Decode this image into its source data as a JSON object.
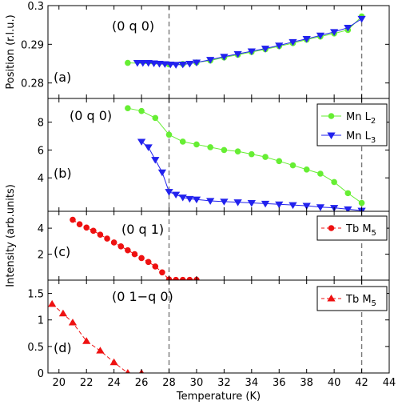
{
  "colors": {
    "green": "#66ee33",
    "blue": "#2222ee",
    "red": "#ee1111",
    "dash_line": "#777777",
    "frame": "#000000"
  },
  "chart_data": [
    {
      "id": "a",
      "type": "line",
      "panel_label": "(a)",
      "annotation": "(0 q 0)",
      "ylabel": "Position (r.l.u.)",
      "xlim": [
        19.2,
        44
      ],
      "ylim": [
        0.276,
        0.3
      ],
      "yticks": [
        0.28,
        0.29,
        0.3
      ],
      "ytick_labels": [
        "0.28",
        "0.29",
        "0.3"
      ],
      "vlines": [
        28,
        42
      ],
      "series": [
        {
          "name": "Mn L2",
          "color": "green",
          "marker": "circle",
          "line": "solid",
          "x": [
            25,
            28,
            29,
            30,
            31,
            32,
            33,
            34,
            35,
            36,
            37,
            38,
            39,
            40,
            41,
            42
          ],
          "y": [
            0.2852,
            0.2848,
            0.2849,
            0.2853,
            0.2858,
            0.2866,
            0.2873,
            0.288,
            0.2887,
            0.2895,
            0.2903,
            0.2912,
            0.292,
            0.2928,
            0.2937,
            0.2972
          ]
        },
        {
          "name": "Mn L3",
          "color": "blue",
          "marker": "triangle-down",
          "line": "solid",
          "x": [
            25.7,
            26.1,
            26.5,
            26.9,
            27.3,
            27.7,
            28.1,
            28.5,
            29,
            29.5,
            30,
            31,
            32,
            33,
            34,
            35,
            36,
            37,
            38,
            39,
            40,
            41,
            42
          ],
          "y": [
            0.2852,
            0.2852,
            0.2852,
            0.2851,
            0.285,
            0.2849,
            0.2848,
            0.2847,
            0.2848,
            0.285,
            0.2853,
            0.286,
            0.2868,
            0.2875,
            0.2882,
            0.2889,
            0.2897,
            0.2906,
            0.2914,
            0.2923,
            0.2932,
            0.2943,
            0.2966
          ]
        }
      ]
    },
    {
      "id": "b",
      "type": "line",
      "panel_label": "(b)",
      "annotation": "(0 q 0)",
      "xlim": [
        19.2,
        44
      ],
      "ylim": [
        1.6,
        9.7
      ],
      "yticks": [
        4,
        6,
        8
      ],
      "ytick_labels": [
        "4",
        "6",
        "8"
      ],
      "vlines": [
        28,
        42
      ],
      "legend": {
        "placement": "top-right",
        "entries": [
          {
            "label_main": "Mn L",
            "label_sub": "2",
            "color": "green",
            "marker": "circle",
            "line": "solid"
          },
          {
            "label_main": "Mn L",
            "label_sub": "3",
            "color": "blue",
            "marker": "triangle-down",
            "line": "solid"
          }
        ]
      },
      "series": [
        {
          "name": "Mn L2",
          "color": "green",
          "marker": "circle",
          "line": "solid",
          "x": [
            25,
            26,
            27,
            28,
            29,
            30,
            31,
            32,
            33,
            34,
            35,
            36,
            37,
            38,
            39,
            40,
            41,
            42
          ],
          "y": [
            9.0,
            8.8,
            8.3,
            7.1,
            6.6,
            6.4,
            6.2,
            6.0,
            5.9,
            5.7,
            5.5,
            5.2,
            4.9,
            4.6,
            4.3,
            3.7,
            2.9,
            2.2
          ]
        },
        {
          "name": "Mn L3",
          "color": "blue",
          "marker": "triangle-down",
          "line": "solid",
          "x": [
            26,
            26.5,
            27,
            27.5,
            28,
            28.5,
            29,
            29.5,
            30,
            31,
            32,
            33,
            34,
            35,
            36,
            37,
            38,
            39,
            40,
            41,
            42
          ],
          "y": [
            6.6,
            6.2,
            5.3,
            4.4,
            3.0,
            2.8,
            2.6,
            2.5,
            2.45,
            2.35,
            2.3,
            2.25,
            2.2,
            2.15,
            2.1,
            2.05,
            2.0,
            1.9,
            1.85,
            1.75,
            1.65
          ]
        }
      ]
    },
    {
      "id": "c",
      "type": "line",
      "panel_label": "(c)",
      "annotation": "(0 q 1)",
      "xlim": [
        19.2,
        44
      ],
      "ylim": [
        0,
        5.3
      ],
      "yticks": [
        2,
        4
      ],
      "ytick_labels": [
        "2",
        "4"
      ],
      "vlines": [
        28,
        42
      ],
      "legend": {
        "placement": "top-right",
        "entries": [
          {
            "label_main": "Tb M",
            "label_sub": "5",
            "color": "red",
            "marker": "circle",
            "line": "dashed"
          }
        ]
      },
      "series": [
        {
          "name": "Tb M5",
          "color": "red",
          "marker": "circle",
          "line": "dashed",
          "x": [
            21,
            21.5,
            22,
            22.5,
            23,
            23.5,
            24,
            24.5,
            25,
            25.5,
            26,
            26.5,
            27,
            27.5,
            28,
            28.5,
            29,
            29.5,
            30
          ],
          "y": [
            4.65,
            4.3,
            4.05,
            3.8,
            3.5,
            3.2,
            2.9,
            2.6,
            2.3,
            2.0,
            1.7,
            1.4,
            1.05,
            0.6,
            0.05,
            0.02,
            0.02,
            0.02,
            0.02
          ]
        }
      ]
    },
    {
      "id": "d",
      "type": "line",
      "panel_label": "(d)",
      "annotation": "(0 1−q 0)",
      "xlim": [
        19.2,
        44
      ],
      "ylim": [
        0,
        1.75
      ],
      "yticks": [
        0,
        0.5,
        1,
        1.5
      ],
      "ytick_labels": [
        "0",
        "0.5",
        "1",
        "1.5"
      ],
      "vlines": [
        28,
        42
      ],
      "xlabel": "Temperature (K)",
      "xticks": [
        20,
        22,
        24,
        26,
        28,
        30,
        32,
        34,
        36,
        38,
        40,
        42,
        44
      ],
      "xtick_labels": [
        "20",
        "22",
        "24",
        "26",
        "28",
        "30",
        "32",
        "34",
        "36",
        "38",
        "40",
        "42",
        "44"
      ],
      "legend": {
        "placement": "top-right",
        "entries": [
          {
            "label_main": "Tb M",
            "label_sub": "5",
            "color": "red",
            "marker": "triangle-up",
            "line": "dashed"
          }
        ]
      },
      "series": [
        {
          "name": "Tb M5",
          "color": "red",
          "marker": "triangle-up",
          "line": "dashed",
          "x": [
            19.5,
            20.3,
            21,
            22,
            23,
            24,
            25,
            26
          ],
          "y": [
            1.3,
            1.12,
            0.95,
            0.6,
            0.42,
            0.2,
            0.0,
            0.0
          ]
        }
      ]
    }
  ],
  "shared": {
    "ylabel_intensity": "Intensity (arb.units)"
  }
}
